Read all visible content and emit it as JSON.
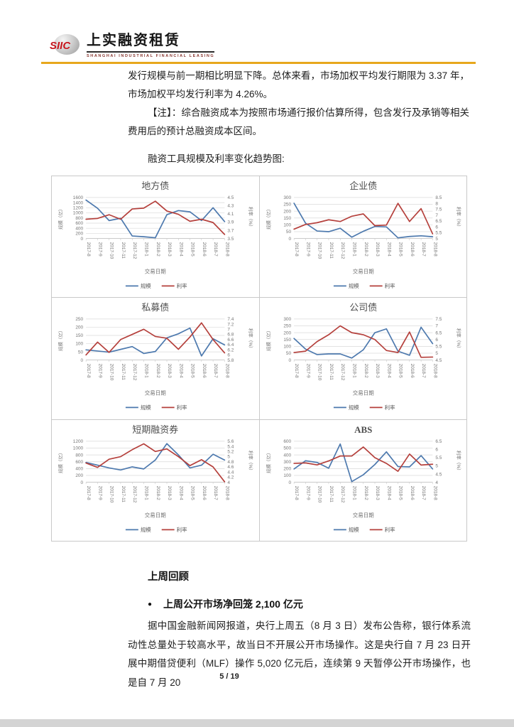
{
  "header": {
    "logo_mark": "SIIC",
    "logo_title": "上实融资租赁",
    "logo_subtitle": "SHANGHAI INDUSTRIAL FINANCIAL LEASING",
    "accent_color": "#e7a71c",
    "logo_color": "#c5161d"
  },
  "intro": {
    "para1": "发行规模与前一期相比明显下降。总体来看，市场加权平均发行期限为 3.37 年，市场加权平均发行利率为 4.26%。",
    "para2": "【注】：综合融资成本为按照市场通行报价估算所得，包含发行及承销等相关费用后的预计总融资成本区间。",
    "charts_caption": "融资工具规模及利率变化趋势图:"
  },
  "review": {
    "heading": "上周回顾",
    "bullet_marker": "●",
    "bullet": "上周公开市场净回笼 2,100 亿元",
    "para": "据中国金融新闻网报道，央行上周五（8 月 3 日）发布公告称，银行体系流动性总量处于较高水平，故当日不开展公开市场操作。这是央行自 7 月 23 日开展中期借贷便利（MLF）操作 5,020 亿元后，连续第 9 天暂停公开市场操作，也是自 7 月 20"
  },
  "footer": {
    "page_number": "5 / 19"
  },
  "chart_colors": {
    "scale": "#4d79ae",
    "rate": "#b5403c",
    "grid": "#dadada"
  },
  "chart_data": [
    {
      "type": "line",
      "title": "地方债",
      "xlabel": "交易日期",
      "ylabel_left": "规模（亿）",
      "ylabel_right": "利率（%）",
      "x": [
        "2017-8",
        "2017-9",
        "2017-10",
        "2017-11",
        "2017-12",
        "2018-1",
        "2018-2",
        "2018-3",
        "2018-4",
        "2018-5",
        "2018-6",
        "2018-7",
        "2018-8"
      ],
      "left_axis": {
        "min": 0,
        "max": 1600,
        "step": 200
      },
      "right_axis": {
        "min": 3.5,
        "max": 4.5,
        "step": 0.2
      },
      "grid": true,
      "legend_position": "bottom",
      "series": [
        {
          "name": "规模",
          "axis": "left",
          "color": "#4d79ae",
          "values": [
            1500,
            1180,
            700,
            790,
            100,
            70,
            30,
            930,
            1090,
            1040,
            700,
            1200,
            660
          ]
        },
        {
          "name": "利率",
          "axis": "right",
          "color": "#b5403c",
          "values": [
            3.97,
            3.99,
            4.08,
            3.97,
            4.22,
            4.24,
            4.41,
            4.17,
            4.09,
            3.92,
            3.97,
            3.89,
            3.6
          ]
        }
      ]
    },
    {
      "type": "line",
      "title": "企业债",
      "xlabel": "交易日期",
      "ylabel_left": "规模（亿）",
      "ylabel_right": "利率（%）",
      "x": [
        "2017-8",
        "2017-9",
        "2017-10",
        "2017-11",
        "2017-12",
        "2018-1",
        "2018-2",
        "2018-3",
        "2018-4",
        "2018-5",
        "2018-6",
        "2018-7",
        "2018-8"
      ],
      "left_axis": {
        "min": 0,
        "max": 300,
        "step": 50
      },
      "right_axis": {
        "min": 5,
        "max": 8.5,
        "step": 0.5
      },
      "grid": true,
      "legend_position": "bottom",
      "series": [
        {
          "name": "规模",
          "axis": "left",
          "color": "#4d79ae",
          "values": [
            258,
            112,
            55,
            50,
            75,
            10,
            53,
            88,
            85,
            5,
            15,
            20,
            13
          ]
        },
        {
          "name": "利率",
          "axis": "right",
          "color": "#b5403c",
          "values": [
            5.8,
            6.2,
            6.35,
            6.6,
            6.45,
            6.9,
            7.1,
            6.1,
            6.15,
            8.0,
            6.45,
            7.55,
            5.4
          ]
        }
      ]
    },
    {
      "type": "line",
      "title": "私募债",
      "xlabel": "交易日期",
      "ylabel_left": "规模（亿）",
      "ylabel_right": "利率（%）",
      "x": [
        "2017-8",
        "2017-9",
        "2017-10",
        "2017-11",
        "2017-12",
        "2018-1",
        "2018-2",
        "2018-3",
        "2018-4",
        "2018-5",
        "2018-6",
        "2018-7",
        "2018-8"
      ],
      "left_axis": {
        "min": 0,
        "max": 250,
        "step": 50
      },
      "right_axis": {
        "min": 5.8,
        "max": 7.4,
        "step": 0.2
      },
      "grid": true,
      "legend_position": "bottom",
      "series": [
        {
          "name": "规模",
          "axis": "left",
          "color": "#4d79ae",
          "values": [
            62,
            55,
            48,
            65,
            82,
            40,
            52,
            135,
            160,
            195,
            25,
            130,
            92
          ]
        },
        {
          "name": "利率",
          "axis": "right",
          "color": "#b5403c",
          "values": [
            6.0,
            6.5,
            6.1,
            6.6,
            6.8,
            7.0,
            6.72,
            6.65,
            6.22,
            6.7,
            7.25,
            6.6,
            6.08
          ]
        }
      ]
    },
    {
      "type": "line",
      "title": "公司债",
      "xlabel": "交易日期",
      "ylabel_left": "规模（亿）",
      "ylabel_right": "利率（%）",
      "x": [
        "2017-8",
        "2017-9",
        "2017-10",
        "2017-11",
        "2017-12",
        "2018-1",
        "2018-2",
        "2018-3",
        "2018-4",
        "2018-5",
        "2018-6",
        "2018-7",
        "2018-8"
      ],
      "left_axis": {
        "min": 0,
        "max": 300,
        "step": 50
      },
      "right_axis": {
        "min": 4.5,
        "max": 7.5,
        "step": 0.5
      },
      "grid": true,
      "legend_position": "bottom",
      "series": [
        {
          "name": "规模",
          "axis": "left",
          "color": "#4d79ae",
          "values": [
            158,
            80,
            40,
            45,
            45,
            15,
            75,
            200,
            228,
            65,
            35,
            240,
            120
          ]
        },
        {
          "name": "利率",
          "axis": "right",
          "color": "#b5403c",
          "values": [
            5.05,
            5.15,
            5.85,
            6.35,
            7.0,
            6.5,
            6.35,
            6.0,
            5.2,
            5.05,
            6.55,
            4.7,
            4.72
          ]
        }
      ]
    },
    {
      "type": "line",
      "title": "短期融资券",
      "xlabel": "交易日期",
      "ylabel_left": "规模（亿）",
      "ylabel_right": "利率（%）",
      "x": [
        "2017-8",
        "2017-9",
        "2017-10",
        "2017-11",
        "2017-12",
        "2018-1",
        "2018-2",
        "2018-3",
        "2018-4",
        "2018-5",
        "2018-6",
        "2018-7",
        "2018-8"
      ],
      "left_axis": {
        "min": 0,
        "max": 1200,
        "step": 200
      },
      "right_axis": {
        "min": 4,
        "max": 5.6,
        "step": 0.2
      },
      "grid": true,
      "legend_position": "bottom",
      "series": [
        {
          "name": "规模",
          "axis": "left",
          "color": "#4d79ae",
          "values": [
            580,
            500,
            420,
            360,
            450,
            390,
            650,
            1130,
            800,
            420,
            500,
            820,
            650
          ]
        },
        {
          "name": "利率",
          "axis": "right",
          "color": "#b5403c",
          "values": [
            4.75,
            4.58,
            4.9,
            5.0,
            5.27,
            5.5,
            5.2,
            5.3,
            5.0,
            4.65,
            4.88,
            4.6,
            4.02
          ]
        }
      ]
    },
    {
      "type": "line",
      "title": "ABS",
      "xlabel": "交易日期",
      "ylabel_left": "规模（亿）",
      "ylabel_right": "利率（%）",
      "x": [
        "2017-8",
        "2017-9",
        "2017-10",
        "2017-11",
        "2017-12",
        "2018-1",
        "2018-2",
        "2018-3",
        "2018-4",
        "2018-5",
        "2018-6",
        "2018-7",
        "2018-8"
      ],
      "left_axis": {
        "min": 0,
        "max": 600,
        "step": 100
      },
      "right_axis": {
        "min": 4,
        "max": 6.5,
        "step": 0.5
      },
      "grid": true,
      "legend_position": "bottom",
      "series": [
        {
          "name": "规模",
          "axis": "left",
          "color": "#4d79ae",
          "values": [
            195,
            315,
            290,
            205,
            560,
            10,
            110,
            260,
            445,
            230,
            225,
            390,
            195
          ]
        },
        {
          "name": "利率",
          "axis": "right",
          "color": "#b5403c",
          "values": [
            5.15,
            5.18,
            5.06,
            5.3,
            5.6,
            5.6,
            6.15,
            5.5,
            5.15,
            4.67,
            5.72,
            5.05,
            5.1
          ]
        }
      ]
    }
  ]
}
